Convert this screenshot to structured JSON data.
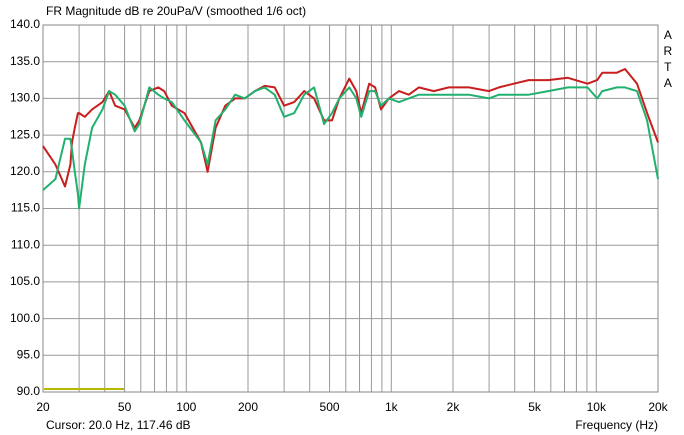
{
  "chart_data": {
    "type": "line",
    "title": "FR Magnitude dB re 20uPa/V (smoothed 1/6 oct)",
    "side_label": "ARTA",
    "cursor": "Cursor: 20.0 Hz, 117.46 dB",
    "x_label": "Frequency (Hz)",
    "xscale": "log",
    "grid": true,
    "xlim": [
      20,
      20000
    ],
    "ylim": [
      90,
      140
    ],
    "xticks": [
      20,
      50,
      100,
      200,
      500,
      {
        "value": 1000,
        "label": "1k"
      },
      {
        "value": 2000,
        "label": "2k"
      },
      {
        "value": 5000,
        "label": "5k"
      },
      {
        "value": 10000,
        "label": "10k"
      },
      {
        "value": 20000,
        "label": "20k"
      }
    ],
    "xgrid": [
      20,
      30,
      40,
      50,
      60,
      70,
      80,
      90,
      100,
      200,
      300,
      400,
      500,
      600,
      700,
      800,
      900,
      1000,
      2000,
      3000,
      4000,
      5000,
      6000,
      7000,
      8000,
      9000,
      10000,
      20000
    ],
    "yticks": [
      {
        "value": 90,
        "label": "90.0"
      },
      {
        "value": 95,
        "label": "95.0"
      },
      {
        "value": 100,
        "label": "100.0"
      },
      {
        "value": 105,
        "label": "105.0"
      },
      {
        "value": 110,
        "label": "110.0"
      },
      {
        "value": 115,
        "label": "115.0"
      },
      {
        "value": 120,
        "label": "120.0"
      },
      {
        "value": 125,
        "label": "125.0"
      },
      {
        "value": 130,
        "label": "130.0"
      },
      {
        "value": 135,
        "label": "135.0"
      },
      {
        "value": 140,
        "label": "140.0"
      }
    ],
    "x": [
      20,
      23,
      25.6,
      27.2,
      27.7,
      28.6,
      29.6,
      30,
      32,
      34.7,
      39,
      42,
      45,
      50,
      56,
      59,
      66,
      73,
      78,
      85,
      98,
      118,
      127,
      139,
      155,
      173,
      193,
      216,
      241,
      270,
      300,
      336,
      376,
      420,
      470,
      514,
      558,
      624,
      675,
      713,
      780,
      834,
      891,
      974,
      1090,
      1218,
      1362,
      1612,
      1907,
      2390,
      2995,
      3350,
      3960,
      4680,
      5830,
      7270,
      9060,
      10100,
      10700,
      12600,
      13800,
      15800,
      17700,
      20000
    ],
    "series": [
      {
        "color": "#c81e1e",
        "values": [
          123.5,
          121,
          118,
          121,
          124,
          126,
          128,
          128,
          127.5,
          128.5,
          129.5,
          131,
          129,
          128.5,
          126,
          127,
          131,
          131.5,
          131,
          129,
          128,
          124,
          120,
          126,
          129,
          130,
          130,
          131,
          131.7,
          131.5,
          129,
          129.5,
          131,
          130,
          127,
          127,
          130,
          132.7,
          131,
          128,
          132,
          131.5,
          128.5,
          130,
          131,
          130.5,
          131.5,
          131,
          131.5,
          131.5,
          131,
          131.5,
          132,
          132.5,
          132.5,
          132.8,
          132,
          132.5,
          133.5,
          133.5,
          134,
          132,
          128,
          124
        ]
      },
      {
        "color": "#22b070",
        "values": [
          117.5,
          119,
          124.5,
          124.5,
          123,
          120,
          117,
          115,
          121,
          126,
          128.5,
          131,
          130.5,
          129,
          125.5,
          126.5,
          131.5,
          130.5,
          130,
          129.5,
          127,
          124,
          121,
          127,
          128.5,
          130.5,
          130,
          131,
          131.5,
          130.5,
          127.5,
          128,
          130.5,
          131.5,
          126.5,
          128,
          130,
          131.5,
          130,
          127.5,
          131,
          131,
          129,
          130,
          129.5,
          130,
          130.5,
          130.5,
          130.5,
          130.5,
          130,
          130.5,
          130.5,
          130.5,
          131,
          131.5,
          131.5,
          130,
          131,
          131.5,
          131.5,
          131,
          127,
          119
        ]
      }
    ]
  }
}
